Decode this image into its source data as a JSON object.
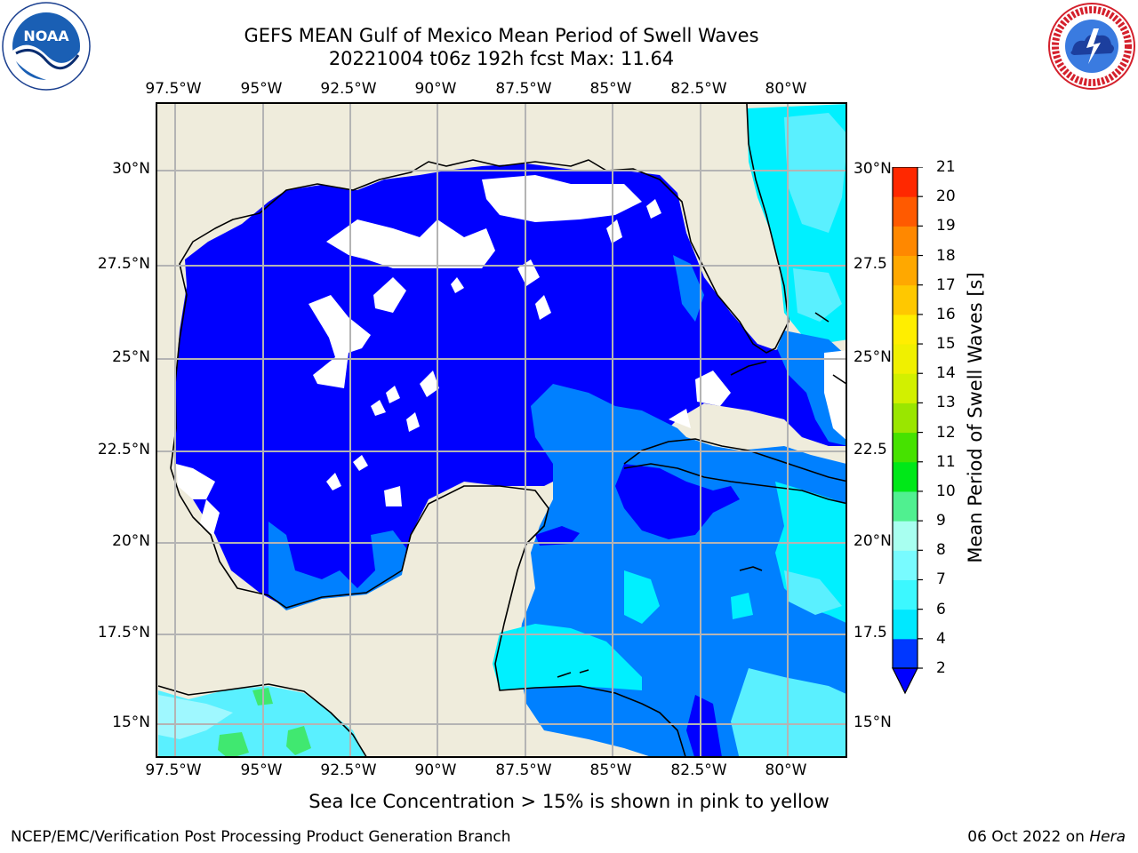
{
  "title_line1": "GEFS MEAN Gulf of Mexico Mean Period of Swell Waves",
  "title_line2": "20221004 t06z 192h fcst   Max: 11.64",
  "x_ticks": [
    "97.5°W",
    "95°W",
    "92.5°W",
    "90°W",
    "87.5°W",
    "85°W",
    "82.5°W",
    "80°W"
  ],
  "y_ticks_left": [
    "30°N",
    "27.5°N",
    "25°N",
    "22.5°N",
    "20°N",
    "17.5°N",
    "15°N"
  ],
  "y_ticks_right": [
    "30°N",
    "27.5",
    "25°N",
    "22.5",
    "20°N",
    "17.5",
    "15°N"
  ],
  "colorbar": {
    "label": "Mean Period of Swell Waves [s]",
    "ticks": [
      "2",
      "4",
      "6",
      "7",
      "8",
      "9",
      "10",
      "11",
      "12",
      "13",
      "14",
      "15",
      "16",
      "17",
      "18",
      "19",
      "20",
      "21"
    ],
    "colors": [
      "#0037ff",
      "#00e8ff",
      "#3cf8ff",
      "#78fbff",
      "#a8fff0",
      "#50f090",
      "#00e818",
      "#46e200",
      "#9ae600",
      "#d2f000",
      "#f0f000",
      "#ffee00",
      "#ffc800",
      "#ffa800",
      "#ff8800",
      "#ff5a00",
      "#ff2800"
    ],
    "under_color": "#0000ff"
  },
  "palette": {
    "land": "#efecdc",
    "sea_dark": "#0000ff",
    "sea_mid": "#0080ff",
    "sea_light": "#00f0ff",
    "sea_pale": "#5af0ff",
    "green": "#40e870",
    "grid": "#b4b4b4"
  },
  "note": "Sea Ice Concentration > 15% is shown in pink to yellow",
  "footer_left": "NCEP/EMC/Verification Post Processing Product Generation Branch",
  "footer_date": "06 Oct 2022 on",
  "footer_host": "Hera",
  "logos": {
    "noaa": "NOAA",
    "nws": "NATIONAL WEATHER SERVICE"
  }
}
